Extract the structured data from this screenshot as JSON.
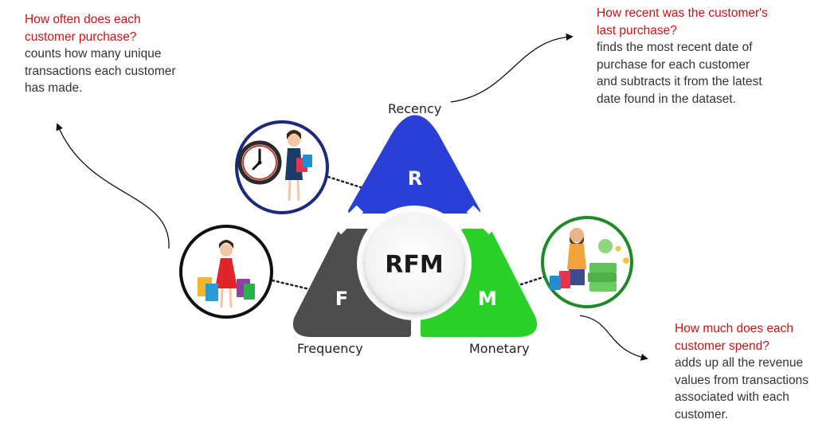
{
  "colors": {
    "recency": "#2a3fd6",
    "frequency": "#4d4d4d",
    "monetary": "#2bd129",
    "question": "#c81414",
    "body_text": "#333333"
  },
  "center": {
    "label": "RFM"
  },
  "segments": {
    "recency": {
      "letter": "R",
      "label": "Recency"
    },
    "frequency": {
      "letter": "F",
      "label": "Frequency"
    },
    "monetary": {
      "letter": "M",
      "label": "Monetary"
    }
  },
  "texts": {
    "frequency": {
      "question": "How often does each customer purchase?",
      "description": "counts how many unique transactions each customer has made."
    },
    "recency": {
      "question": "How recent was the customer's last purchase?",
      "description": "finds the most recent date of purchase for each customer and subtracts it from the latest date found in the dataset."
    },
    "monetary": {
      "question": "How much does each customer spend?",
      "description": "adds up all the revenue values from transactions associated with each customer."
    }
  },
  "illustrations": {
    "recency": "clock-and-shopper-woman-icon",
    "frequency": "woman-with-shopping-bags-icon",
    "monetary": "man-with-money-and-bags-icon"
  }
}
